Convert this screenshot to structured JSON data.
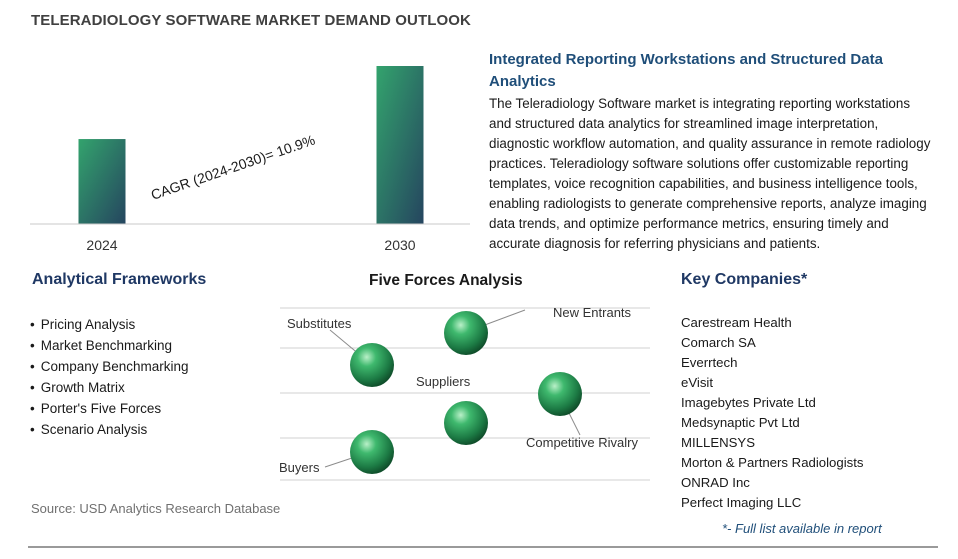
{
  "title": "TELERADIOLOGY SOFTWARE MARKET DEMAND OUTLOOK",
  "chart_data": {
    "type": "bar",
    "categories": [
      "2024",
      "2030"
    ],
    "values": [
      1.0,
      1.86
    ],
    "annotation": "CAGR (2024-2030)=  10.9%",
    "gradient": [
      "#33a36d",
      "#25455f"
    ]
  },
  "insight": {
    "heading": "Integrated Reporting Workstations and Structured Data Analytics",
    "body": "The Teleradiology Software market is integrating reporting workstations and structured data analytics for streamlined image interpretation, diagnostic workflow automation, and quality assurance in remote radiology practices. Teleradiology software solutions offer customizable reporting templates, voice recognition capabilities, and business intelligence tools, enabling radiologists to generate comprehensive reports, analyze imaging data trends, and optimize performance metrics, ensuring timely and accurate diagnosis for referring physicians and patients."
  },
  "frameworks": {
    "title": "Analytical Frameworks",
    "items": [
      "Pricing Analysis",
      "Market Benchmarking",
      "Company Benchmarking",
      "Growth Matrix",
      "Porter's Five Forces",
      "Scenario Analysis"
    ]
  },
  "five_forces": {
    "title": "Five Forces Analysis",
    "labels": [
      "Substitutes",
      "New Entrants",
      "Suppliers",
      "Competitive Rivalry",
      "Buyers"
    ]
  },
  "companies": {
    "title": "Key Companies*",
    "items": [
      "Carestream Health",
      "Comarch SA",
      "Everrtech",
      "eVisit",
      "Imagebytes Private Ltd",
      "Medsynaptic Pvt Ltd",
      "MILLENSYS",
      "Morton & Partners Radiologists",
      "ONRAD Inc",
      "Perfect Imaging LLC"
    ],
    "note": "*- Full list available in report"
  },
  "source": "Source: USD Analytics Research Database",
  "colors": {
    "heading_blue": "#1f4e79",
    "navy": "#1f3864",
    "sphere": "#2e9e5b"
  }
}
